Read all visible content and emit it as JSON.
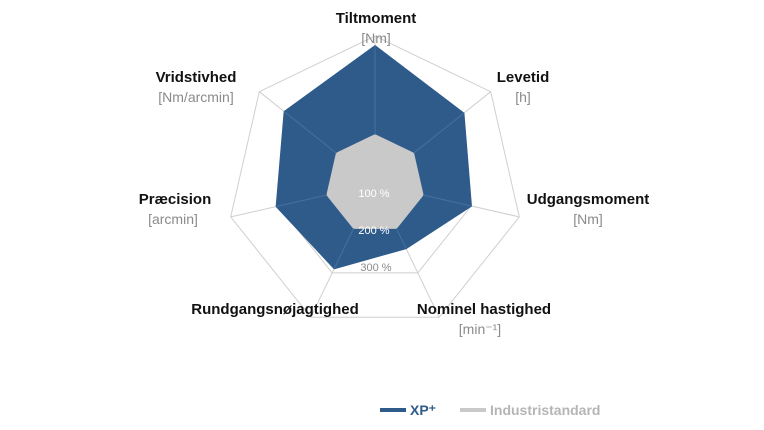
{
  "chart_data": {
    "type": "radar",
    "axes": [
      {
        "label": "Tiltmoment",
        "unit": "[Nm]"
      },
      {
        "label": "Levetid",
        "unit": "[h]"
      },
      {
        "label": "Udgangsmoment",
        "unit": "[Nm]"
      },
      {
        "label": "Nominel hastighed",
        "unit": "[min⁻¹]"
      },
      {
        "label": "Rundgangsnøjagtighed",
        "unit": ""
      },
      {
        "label": "Præcision",
        "unit": "[arcmin]"
      },
      {
        "label": "Vridstivhed",
        "unit": "[Nm/arcmin]"
      }
    ],
    "ring_labels": [
      "100 %",
      "200 %",
      "300 %"
    ],
    "ring_range": [
      0,
      300
    ],
    "series": [
      {
        "name": "XP⁺",
        "values": [
          280,
          230,
          200,
          145,
          190,
          205,
          235
        ]
      },
      {
        "name": "Industristandard",
        "values": [
          100,
          100,
          100,
          100,
          100,
          100,
          100
        ]
      }
    ],
    "legend_position": "bottom-right",
    "colors": {
      "xp": "#2f5b8b",
      "industry": "#c9c9c9",
      "grid": "#cfcfcf",
      "label_light": "#ffffff",
      "label_mid": "#8a8a8a"
    }
  }
}
